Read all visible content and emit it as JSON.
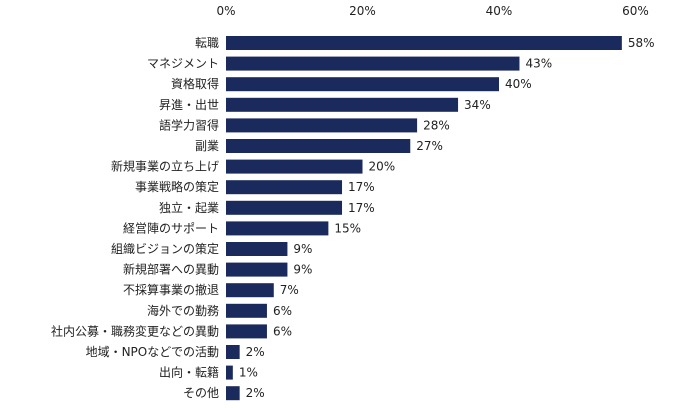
{
  "chart_data": {
    "type": "bar",
    "orientation": "horizontal",
    "categories": [
      "転職",
      "マネジメント",
      "資格取得",
      "昇進・出世",
      "語学力習得",
      "副業",
      "新規事業の立ち上げ",
      "事業戦略の策定",
      "独立・起業",
      "経営陣のサポート",
      "組織ビジョンの策定",
      "新規部署への異動",
      "不採算事業の撤退",
      "海外での勤務",
      "社内公募・職務変更などの異動",
      "地域・NPOなどでの活動",
      "出向・転籍",
      "その他"
    ],
    "values": [
      58,
      43,
      40,
      34,
      28,
      27,
      20,
      17,
      17,
      15,
      9,
      9,
      7,
      6,
      6,
      2,
      1,
      2
    ],
    "value_labels": [
      "58%",
      "43%",
      "40%",
      "34%",
      "28%",
      "27%",
      "20%",
      "17%",
      "17%",
      "15%",
      "9%",
      "9%",
      "7%",
      "6%",
      "6%",
      "2%",
      "1%",
      "2%"
    ],
    "x_ticks": [
      0,
      20,
      40,
      60
    ],
    "x_tick_labels": [
      "0%",
      "20%",
      "40%",
      "60%"
    ],
    "xlim": [
      0,
      60
    ],
    "axis_position": "top",
    "grid": false,
    "bar_color": "#1a2a5c"
  }
}
